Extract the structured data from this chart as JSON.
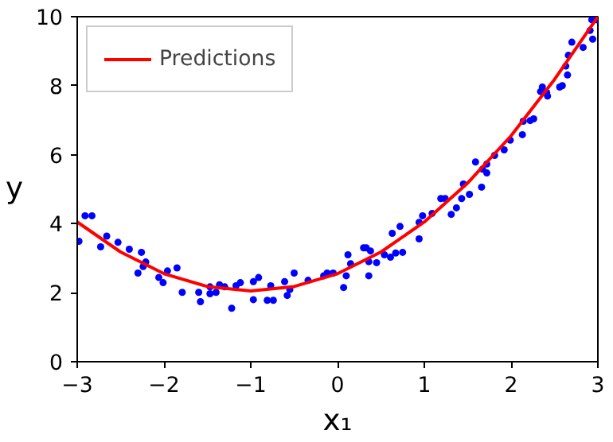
{
  "chart_data": {
    "type": "scatter",
    "xlabel": "x₁",
    "ylabel": "y",
    "xlim": [
      -3,
      3
    ],
    "ylim": [
      0,
      10
    ],
    "xticks": [
      -3,
      -2,
      -1,
      0,
      1,
      2,
      3
    ],
    "yticks": [
      0,
      2,
      4,
      6,
      8,
      10
    ],
    "grid": false,
    "legend": "top left",
    "series": [
      {
        "color": "#0000ff",
        "marker": "circle",
        "x": [
          -2.98,
          -2.91,
          -2.83,
          -2.73,
          -2.66,
          -2.53,
          -2.4,
          -2.26,
          -2.3,
          -2.24,
          -2.21,
          -2.06,
          -2.01,
          -1.96,
          -1.85,
          -1.79,
          -1.6,
          -1.58,
          -1.47,
          -1.47,
          -1.4,
          -1.36,
          -1.3,
          -1.22,
          -1.17,
          -1.12,
          -0.97,
          -0.97,
          -0.91,
          -0.81,
          -0.77,
          -0.74,
          -0.61,
          -0.58,
          -0.55,
          -0.5,
          -0.34,
          -0.16,
          -0.12,
          -0.05,
          0.07,
          0.1,
          0.12,
          0.15,
          0.3,
          0.33,
          0.38,
          0.36,
          0.36,
          0.45,
          0.54,
          0.61,
          0.67,
          0.75,
          0.63,
          0.72,
          0.94,
          0.94,
          0.98,
          1.09,
          1.19,
          1.24,
          1.31,
          1.37,
          1.43,
          1.45,
          1.52,
          1.59,
          1.66,
          1.67,
          1.72,
          1.72,
          1.81,
          1.92,
          1.99,
          2.13,
          2.14,
          2.22,
          2.26,
          2.34,
          2.36,
          2.42,
          2.41,
          2.56,
          2.59,
          2.65,
          2.63,
          2.66,
          2.7,
          2.83,
          2.91,
          2.93,
          2.94,
          2.99
        ],
        "values": [
          3.49,
          4.23,
          4.23,
          3.33,
          3.64,
          3.46,
          3.26,
          3.17,
          2.57,
          2.76,
          2.89,
          2.44,
          2.29,
          2.63,
          2.72,
          2.01,
          2.01,
          1.74,
          1.97,
          2.17,
          2.01,
          2.23,
          2.17,
          1.55,
          2.2,
          2.29,
          2.32,
          1.8,
          2.44,
          1.78,
          2.2,
          1.78,
          2.32,
          1.92,
          2.09,
          2.57,
          2.36,
          2.49,
          2.57,
          2.57,
          2.15,
          2.49,
          3.1,
          2.84,
          3.3,
          3.3,
          3.21,
          2.9,
          2.49,
          2.87,
          3.1,
          3.03,
          3.15,
          3.17,
          3.72,
          3.92,
          3.56,
          4.04,
          4.23,
          4.3,
          4.73,
          4.73,
          4.27,
          4.46,
          4.73,
          5.15,
          4.85,
          5.79,
          5.06,
          5.58,
          5.73,
          5.47,
          5.98,
          6.14,
          6.42,
          6.58,
          6.97,
          6.99,
          7.04,
          7.83,
          7.96,
          7.7,
          7.8,
          7.96,
          8.0,
          8.31,
          8.57,
          8.88,
          9.26,
          9.11,
          9.6,
          9.91,
          9.35,
          9.91
        ]
      },
      {
        "type": "line",
        "name": "Predictions",
        "color": "#ff0000",
        "line_style": "solid",
        "x": [
          -3,
          -2.5,
          -2,
          -1.5,
          -1,
          -0.5,
          0,
          0.5,
          1,
          1.5,
          2,
          2.5,
          3
        ],
        "values": [
          4.05,
          3.18,
          2.55,
          2.18,
          2.05,
          2.18,
          2.55,
          3.18,
          4.05,
          5.18,
          6.55,
          8.18,
          10.0
        ]
      }
    ]
  }
}
